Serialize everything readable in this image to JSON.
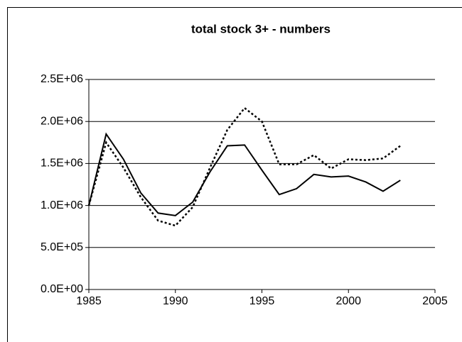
{
  "chart_data": {
    "type": "line",
    "title": "total stock 3+ - numbers",
    "x": [
      1985,
      1986,
      1987,
      1988,
      1989,
      1990,
      1991,
      1992,
      1993,
      1994,
      1995,
      1996,
      1997,
      1998,
      1999,
      2000,
      2001,
      2002,
      2003
    ],
    "series": [
      {
        "color": "#000000",
        "line_style": "solid",
        "values": [
          1000000,
          1850000,
          1550000,
          1150000,
          910000,
          880000,
          1040000,
          1400000,
          1710000,
          1720000,
          1420000,
          1130000,
          1200000,
          1370000,
          1340000,
          1350000,
          1280000,
          1170000,
          1300000
        ]
      },
      {
        "color": "#000000",
        "line_style": "dotted",
        "values": [
          1000000,
          1750000,
          1450000,
          1100000,
          820000,
          760000,
          980000,
          1450000,
          1900000,
          2160000,
          2000000,
          1490000,
          1490000,
          1600000,
          1440000,
          1550000,
          1540000,
          1560000,
          1710000
        ]
      }
    ],
    "xlim": [
      1985,
      2005
    ],
    "xticks": [
      1985,
      1990,
      1995,
      2000,
      2005
    ],
    "ylim": [
      0,
      2500000
    ],
    "yticks": [
      {
        "value": 0,
        "label": "0.0E+00"
      },
      {
        "value": 500000,
        "label": "5.0E+05"
      },
      {
        "value": 1000000,
        "label": "1.0E+06"
      },
      {
        "value": 1500000,
        "label": "1.5E+06"
      },
      {
        "value": 2000000,
        "label": "2.0E+06"
      },
      {
        "value": 2500000,
        "label": "2.5E+06"
      }
    ],
    "grid": true
  }
}
